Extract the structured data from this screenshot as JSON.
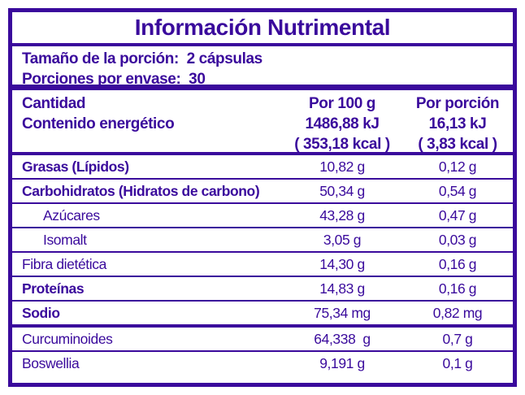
{
  "colors": {
    "purple": "#3A0A9C",
    "background": "#FFFFFF"
  },
  "title": "Información Nutrimental",
  "serving": {
    "line1": "Tamaño de la porción:  2 cápsulas",
    "line2": "Porciones por envase:  30"
  },
  "table": {
    "header": {
      "label_line1": "Cantidad",
      "label_line2": "Contenido energético",
      "per100_title": "Por 100 g",
      "per100_kj": "1486,88 kJ",
      "per100_kcal": "( 353,18 kcal )",
      "portion_title": "Por porción",
      "portion_kj": "16,13 kJ",
      "portion_kcal": "( 3,83 kcal )"
    },
    "rows": [
      {
        "label": "Grasas (Lípidos)",
        "per100": "10,82 g",
        "portion": "0,12 g"
      },
      {
        "label": "Carbohidratos (Hidratos de carbono)",
        "per100": "50,34 g",
        "portion": "0,54 g"
      },
      {
        "label": "Azúcares",
        "per100": "43,28 g",
        "portion": "0,47 g"
      },
      {
        "label": "Isomalt",
        "per100": "3,05 g",
        "portion": "0,03 g"
      },
      {
        "label": "Fibra dietética",
        "per100": "14,30 g",
        "portion": "0,16 g"
      },
      {
        "label": "Proteínas",
        "per100": "14,83 g",
        "portion": "0,16 g"
      },
      {
        "label": "Sodio",
        "per100": "75,34 mg",
        "portion": "0,82 mg"
      },
      {
        "label": "Curcuminoides",
        "per100": "64,338  g",
        "portion": "0,7 g"
      },
      {
        "label": "Boswellia",
        "per100": "9,191 g",
        "portion": "0,1 g"
      }
    ]
  }
}
